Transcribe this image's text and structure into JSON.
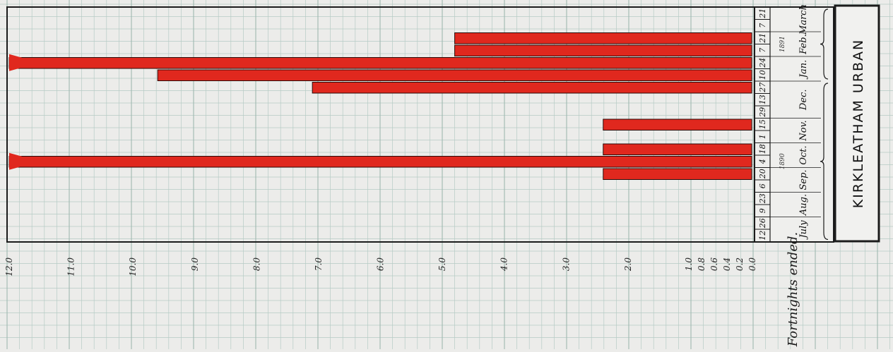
{
  "chart_data": {
    "type": "bar",
    "orientation": "horizontal",
    "region": "KIRKLEATHAM URBAN",
    "categories_label": "Fortnights ended.",
    "scale_ticks": [
      "12.0",
      "11.0",
      "10.0",
      "9.0",
      "8.0",
      "7.0",
      "6.0",
      "5.0",
      "4.0",
      "3.0",
      "2.0",
      "1.0",
      "0.8",
      "0.6",
      "0.4",
      "0.2",
      "0.0"
    ],
    "year_labels": [
      "1890",
      "1891"
    ],
    "months": [
      "July",
      "Aug.",
      "Sep.",
      "Oct.",
      "Nov.",
      "Dec.",
      "Jan.",
      "Feb.",
      "March"
    ],
    "categories": [
      "12",
      "26",
      "9",
      "23",
      "6",
      "20",
      "4",
      "18",
      "1",
      "15",
      "29",
      "13",
      "27",
      "10",
      "24",
      "7",
      "21",
      "7",
      "21"
    ],
    "values": [
      0,
      0,
      0,
      0,
      0,
      2.4,
      12.0,
      2.4,
      0,
      2.4,
      0,
      0,
      7.1,
      9.6,
      12.0,
      4.8,
      4.8,
      0,
      0
    ],
    "xlim": [
      12.0,
      0.0
    ],
    "grid": true,
    "colors": {
      "bar": "#e0281e",
      "grid": "#b6cbc5",
      "paper": "#ececea",
      "ink": "#1b1b1b"
    }
  }
}
